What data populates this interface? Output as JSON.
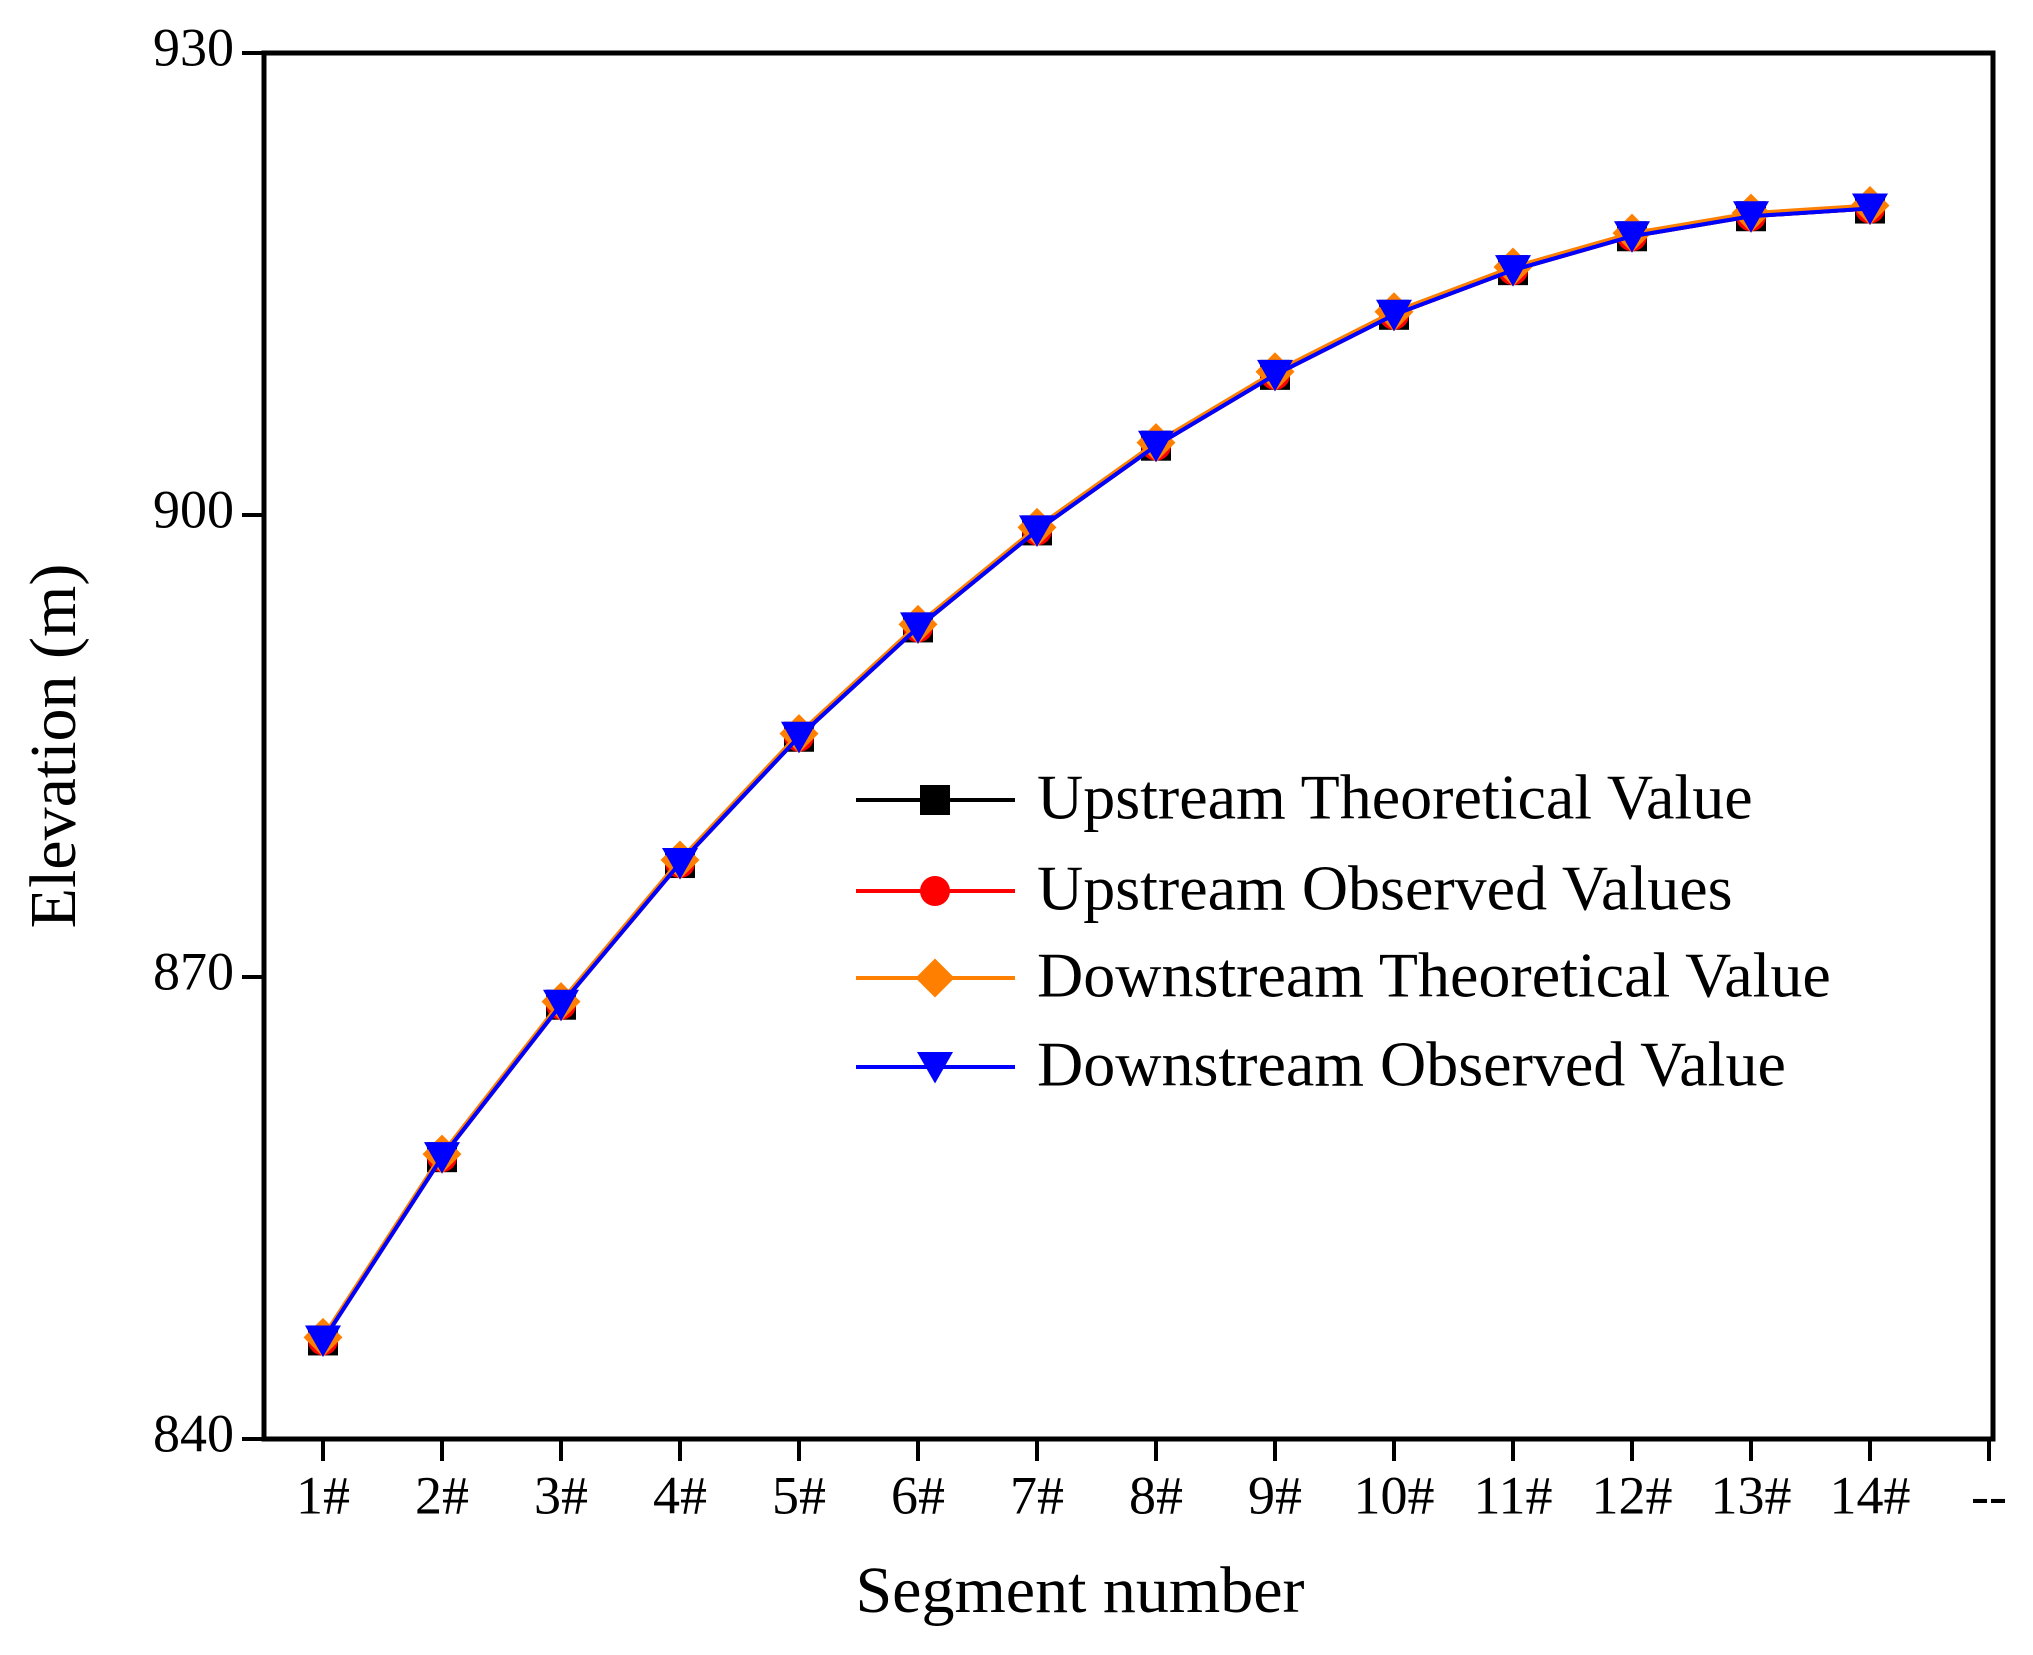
{
  "chart_data": {
    "type": "line",
    "xlabel": "Segment number",
    "ylabel": "Elevation (m)",
    "categories": [
      "1#",
      "2#",
      "3#",
      "4#",
      "5#",
      "6#",
      "7#",
      "8#",
      "9#",
      "10#",
      "11#",
      "12#",
      "13#",
      "14#",
      "--"
    ],
    "ylim": [
      840,
      930
    ],
    "yticks": [
      840,
      870,
      900,
      930
    ],
    "legend": "right",
    "series": [
      {
        "name": "Upstream Theoretical Value",
        "color": "#000000",
        "marker": "square",
        "values": [
          846.4,
          858.3,
          868.2,
          877.4,
          885.6,
          892.7,
          899.0,
          904.5,
          909.1,
          913.0,
          915.9,
          918.1,
          919.4,
          919.9,
          null
        ]
      },
      {
        "name": "Upstream Observed Values",
        "color": "#ff0000",
        "marker": "circle",
        "values": [
          846.4,
          858.3,
          868.2,
          877.4,
          885.6,
          892.7,
          899.0,
          904.5,
          909.1,
          913.0,
          915.9,
          918.1,
          919.4,
          919.9,
          null
        ]
      },
      {
        "name": "Downstream Theoretical Value",
        "color": "#ff8000",
        "marker": "diamond",
        "values": [
          846.6,
          858.5,
          868.4,
          877.6,
          885.8,
          892.9,
          899.2,
          904.7,
          909.3,
          913.2,
          916.1,
          918.3,
          919.6,
          920.1,
          null
        ]
      },
      {
        "name": "Downstream Observed Value",
        "color": "#0000ff",
        "marker": "triangle-down",
        "values": [
          846.4,
          858.3,
          868.2,
          877.4,
          885.6,
          892.7,
          899.0,
          904.5,
          909.1,
          913.0,
          915.9,
          918.1,
          919.4,
          919.9,
          null
        ]
      }
    ]
  }
}
